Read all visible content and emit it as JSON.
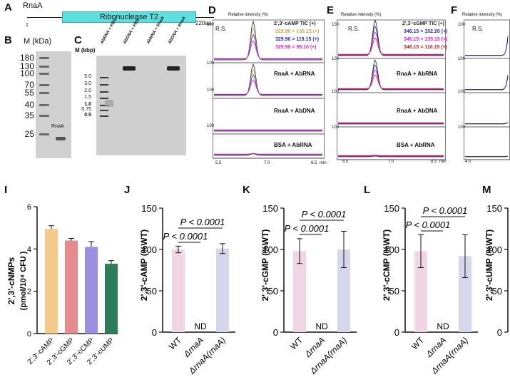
{
  "panel_letters": {
    "A": "A",
    "B": "B",
    "C": "C",
    "D": "D",
    "E": "E",
    "F": "F",
    "I": "I",
    "J": "J",
    "K": "K",
    "L": "L",
    "M": "M"
  },
  "panelA": {
    "protein": "RnaA",
    "domain": "Ribonuclease T2",
    "start": "1",
    "end": "220aa",
    "colors": {
      "domain": "#5fdede"
    }
  },
  "panelB": {
    "marker_title": "M (kDa)",
    "markers": [
      "180",
      "130",
      "100",
      "70",
      "55",
      "40",
      "35",
      "25"
    ],
    "band_label": "RnaA"
  },
  "panelC": {
    "marker_title": "M (kbp)",
    "markers": [
      "5.0",
      "3.0",
      "2.0",
      "1.5",
      "1.0",
      "0.75",
      "0.5"
    ],
    "lanes": [
      "AbRNA + PBS",
      "AbDNA + PBS",
      "AbRNA + RnaA",
      "AbDNA + RnaA"
    ]
  },
  "panelD": {
    "ylabel": "Relative intensity (%)",
    "y100": "100",
    "xunit": "min",
    "xticks": [
      "5.5",
      "7.0",
      "8.5"
    ],
    "legend": [
      {
        "text": "2',3'-cAMP TIC (+)",
        "color": "#222222"
      },
      {
        "text": "329.90 > 136.15 (+)",
        "color": "#d6a060"
      },
      {
        "text": "329.90 > 119.15 (+)",
        "color": "#2a2ab0"
      },
      {
        "text": "329.90 > 99.10 (+)",
        "color": "#e020e0"
      }
    ],
    "traces": [
      "R.S.",
      "RnaA + AbRNA",
      "RnaA + AbDNA",
      "BSA + AbRNA"
    ]
  },
  "panelE": {
    "ylabel": "Relative intensity (%)",
    "y100": "100",
    "xunit": "min",
    "xticks": [
      "5.5",
      "7.0",
      "8.5"
    ],
    "legend": [
      {
        "text": "2',3'-cGMP TIC (+)",
        "color": "#222222"
      },
      {
        "text": "346.15 > 152.20 (+)",
        "color": "#2a2ab0"
      },
      {
        "text": "346.15 > 135.15 (+)",
        "color": "#e020e0"
      },
      {
        "text": "346.15 > 110.15 (+)",
        "color": "#c02020"
      }
    ],
    "traces": [
      "R.S.",
      "RnaA + AbRNA",
      "RnaA + AbDNA",
      "BSA + AbRNA"
    ]
  },
  "panelF": {
    "ylabel": "Relative intensity (%)",
    "y100": "100",
    "xtick": "4.0",
    "trace": "R.S."
  },
  "panelI": {
    "ylabel": "2',3'-cNMPs",
    "yunit": "(pmol/10⁸ CFU )",
    "chart_data": {
      "type": "bar",
      "categories": [
        "2',3'-cAMP",
        "2',3'-cGMP",
        "2',3'-cCMP",
        "2',3'-cUMP"
      ],
      "values": [
        4.95,
        4.4,
        4.1,
        3.3
      ],
      "errors": [
        0.15,
        0.1,
        0.25,
        0.15
      ],
      "colors": [
        "#f4c98a",
        "#e58a8e",
        "#9c8fe0",
        "#2e7d5a"
      ],
      "ylim": [
        0,
        6
      ],
      "yticks": [
        "0",
        "2",
        "4",
        "6"
      ]
    }
  },
  "panelJ": {
    "ylabel": "2',3'-cAMP (%WT)",
    "chart_data": {
      "type": "bar",
      "categories": [
        "WT",
        "ΔrnaA",
        "ΔrnaA(rnaA)"
      ],
      "values": [
        100,
        0,
        101
      ],
      "errors": [
        4,
        0,
        6
      ],
      "colors": [
        "#f0d6e4",
        "#ffffff",
        "#d6d6ec"
      ],
      "ylim": [
        0,
        150
      ],
      "yticks": [
        "0",
        "50",
        "100",
        "150"
      ]
    },
    "nd": "ND",
    "p1": "P < 0.0001",
    "p2": "P < 0.0001"
  },
  "panelK": {
    "ylabel": "2',3'-cGMP (%WT)",
    "chart_data": {
      "type": "bar",
      "categories": [
        "WT",
        "ΔrnaA",
        "ΔrnaA(rnaA)"
      ],
      "values": [
        98,
        0,
        100
      ],
      "errors": [
        15,
        0,
        22
      ],
      "colors": [
        "#f0d6e4",
        "#ffffff",
        "#d6d6ec"
      ],
      "ylim": [
        0,
        150
      ],
      "yticks": [
        "0",
        "50",
        "100",
        "150"
      ]
    },
    "nd": "ND",
    "p1": "P < 0.0001",
    "p2": "P < 0.0001"
  },
  "panelL": {
    "ylabel": "2',3'-cCMP (%WT)",
    "chart_data": {
      "type": "bar",
      "categories": [
        "WT",
        "ΔrnaA",
        "ΔrnaA(rnaA)"
      ],
      "values": [
        98,
        0,
        92
      ],
      "errors": [
        20,
        0,
        26
      ],
      "colors": [
        "#f0d6e4",
        "#ffffff",
        "#d6d6ec"
      ],
      "ylim": [
        0,
        150
      ],
      "yticks": [
        "0",
        "50",
        "100",
        "150"
      ]
    },
    "nd": "ND",
    "p1": "P < 0.0001",
    "p2": "P < 0.0001"
  },
  "panelM": {
    "ylabel": "2',3'-cUMP (%WT)",
    "yticks": [
      "0",
      "50",
      "100",
      "150"
    ]
  }
}
